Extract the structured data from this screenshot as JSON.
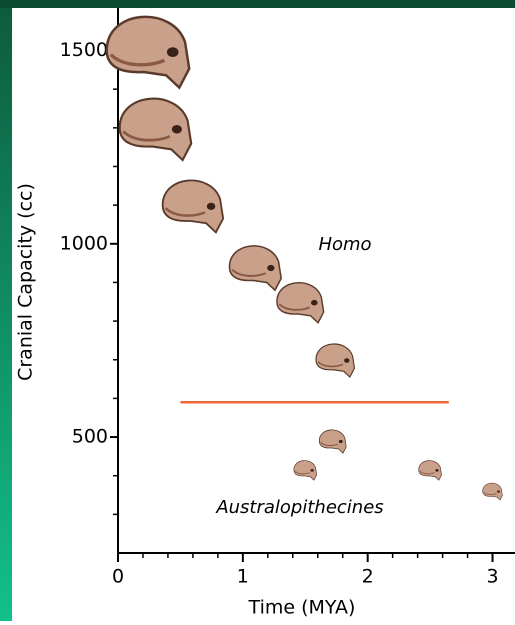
{
  "chart_data": {
    "type": "scatter",
    "x_label": "Time (MYA)",
    "y_label": "Cranial Capacity (cc)",
    "xlim": [
      0,
      3.18
    ],
    "ylim": [
      200,
      1610
    ],
    "xticks": [
      0,
      1,
      2,
      3
    ],
    "yticks": [
      500,
      1000,
      1500
    ],
    "xminorticks": [
      0.2,
      0.4,
      0.6,
      0.8,
      1.2,
      1.4,
      1.6,
      1.8,
      2.2,
      2.4,
      2.6,
      2.8
    ],
    "yminorticks": [
      300,
      400,
      600,
      700,
      800,
      900,
      1100,
      1200,
      1300,
      1400
    ],
    "series": [
      {
        "color": "#c9a08a",
        "x": [
          0.24,
          0.3,
          0.6,
          1.1,
          1.46,
          1.74,
          1.72,
          1.5,
          2.5,
          3.0
        ],
        "values": [
          1500,
          1300,
          1100,
          940,
          850,
          700,
          490,
          415,
          415,
          360
        ]
      }
    ],
    "divider": {
      "x": [
        0.5,
        2.65
      ],
      "y": 590,
      "color": "#f26a3c"
    },
    "annotations": [
      "Homo",
      "Australopithecines"
    ]
  }
}
